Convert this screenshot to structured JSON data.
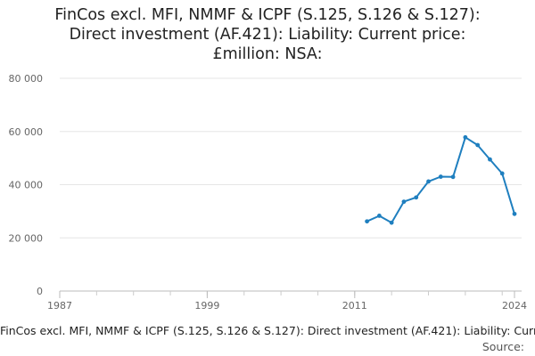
{
  "chart_data": {
    "type": "line",
    "title_lines": [
      "FinCos excl. MFI, NMMF & ICPF (S.125, S.126 & S.127):",
      "Direct investment (AF.421): Liability: Current price:",
      "£million: NSA:"
    ],
    "caption": "FinCos excl. MFI, NMMF & ICPF (S.125, S.126 & S.127): Direct investment (AF.421): Liability: Current price: £million: NSA:",
    "source_label": "Source:",
    "xlim": [
      1987,
      2024
    ],
    "ylim": [
      0,
      80000
    ],
    "x_ticks": [
      1987,
      1999,
      2011,
      2024
    ],
    "x_tick_labels": [
      "1987",
      "1999",
      "2011",
      "2024"
    ],
    "y_ticks": [
      0,
      20000,
      40000,
      60000,
      80000
    ],
    "y_tick_labels": [
      "0",
      "20 000",
      "40 000",
      "60 000",
      "80 000"
    ],
    "series": [
      {
        "name": "Liability",
        "color": "#1f7fbf",
        "x": [
          2012,
          2013,
          2014,
          2015,
          2016,
          2017,
          2018,
          2019,
          2020,
          2021,
          2022,
          2023,
          2024
        ],
        "values": [
          26200,
          28300,
          25700,
          33600,
          35200,
          41200,
          43000,
          42900,
          57800,
          54900,
          49500,
          44200,
          29000
        ]
      }
    ]
  }
}
